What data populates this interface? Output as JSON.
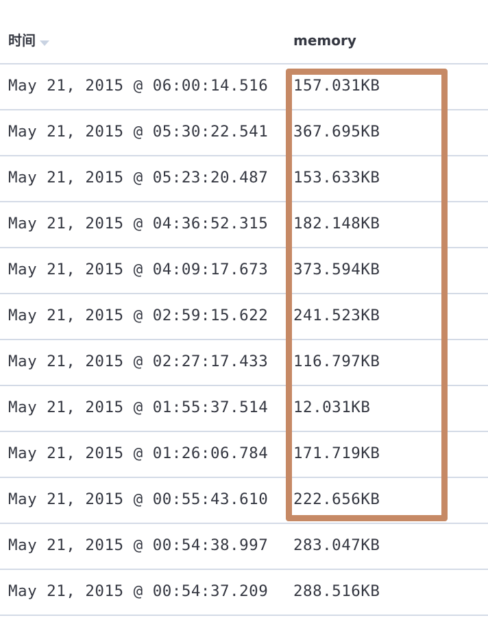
{
  "table": {
    "columns": {
      "time": "时间",
      "memory": "memory"
    },
    "rows": [
      {
        "time": "May 21, 2015 @ 06:00:14.516",
        "memory": "157.031KB"
      },
      {
        "time": "May 21, 2015 @ 05:30:22.541",
        "memory": "367.695KB"
      },
      {
        "time": "May 21, 2015 @ 05:23:20.487",
        "memory": "153.633KB"
      },
      {
        "time": "May 21, 2015 @ 04:36:52.315",
        "memory": "182.148KB"
      },
      {
        "time": "May 21, 2015 @ 04:09:17.673",
        "memory": "373.594KB"
      },
      {
        "time": "May 21, 2015 @ 02:59:15.622",
        "memory": "241.523KB"
      },
      {
        "time": "May 21, 2015 @ 02:27:17.433",
        "memory": "116.797KB"
      },
      {
        "time": "May 21, 2015 @ 01:55:37.514",
        "memory": "12.031KB"
      },
      {
        "time": "May 21, 2015 @ 01:26:06.784",
        "memory": "171.719KB"
      },
      {
        "time": "May 21, 2015 @ 00:55:43.610",
        "memory": "222.656KB"
      },
      {
        "time": "May 21, 2015 @ 00:54:38.997",
        "memory": "283.047KB"
      },
      {
        "time": "May 21, 2015 @ 00:54:37.209",
        "memory": "288.516KB"
      }
    ]
  },
  "colors": {
    "highlight_border": "#c68965",
    "row_divider": "#d3dae6",
    "text": "#343741",
    "sort_icon": "#c9d3e2"
  },
  "icons": {
    "sort": "sort-descending-icon"
  }
}
